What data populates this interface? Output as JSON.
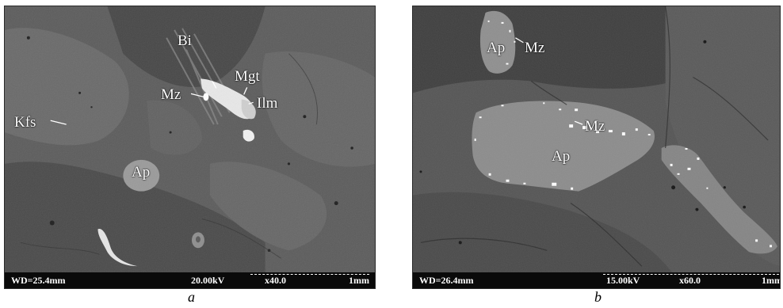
{
  "panel_a": {
    "caption": "a",
    "labels": {
      "bi": "Bi",
      "mgt": "Mgt",
      "mz": "Mz",
      "ilm": "Ilm",
      "kfs": "Kfs",
      "ap": "Ap"
    },
    "databar": {
      "wd": "WD=25.4mm",
      "kv": "20.00kV",
      "mag": "x40.0",
      "scale": "1mm"
    }
  },
  "panel_b": {
    "caption": "b",
    "labels": {
      "ap_top": "Ap",
      "mz_top": "Mz",
      "mz_mid": "Mz",
      "ap_mid": "Ap"
    },
    "databar": {
      "wd": "WD=26.4mm",
      "kv": "15.00kV",
      "mag": "x60.0",
      "scale": "1mm"
    }
  }
}
